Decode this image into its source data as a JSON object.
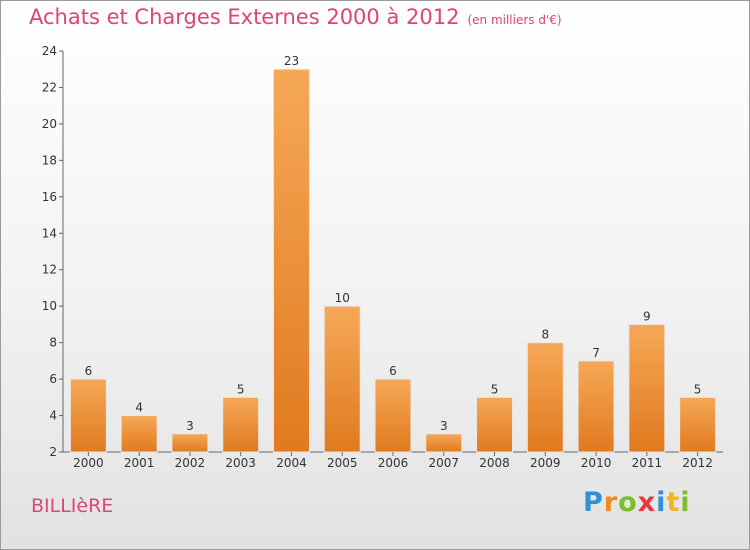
{
  "header": {
    "title": "Achats et Charges Externes 2000 à 2012",
    "subtitle": "(en milliers d'€)"
  },
  "footer": {
    "city": "BILLIèRE",
    "logo": [
      "P",
      "r",
      "o",
      "x",
      "i",
      "t",
      "i"
    ]
  },
  "colors": {
    "title": "#e0456c",
    "bar_light": "#f6a857",
    "bar_dark": "#e07a1f",
    "city": "#d9487a"
  },
  "chart_data": {
    "type": "bar",
    "categories": [
      "2000",
      "2001",
      "2002",
      "2003",
      "2004",
      "2005",
      "2006",
      "2007",
      "2008",
      "2009",
      "2010",
      "2011",
      "2012"
    ],
    "values": [
      6,
      4,
      3,
      5,
      23,
      10,
      6,
      3,
      5,
      8,
      7,
      9,
      5
    ],
    "title": "Achats et Charges Externes 2000 à 2012",
    "subtitle": "(en milliers d'€)",
    "ylim": [
      2,
      24
    ],
    "yticks": [
      2,
      4,
      6,
      8,
      10,
      12,
      14,
      16,
      18,
      20,
      22,
      24
    ],
    "grid": false,
    "data_labels": true
  }
}
